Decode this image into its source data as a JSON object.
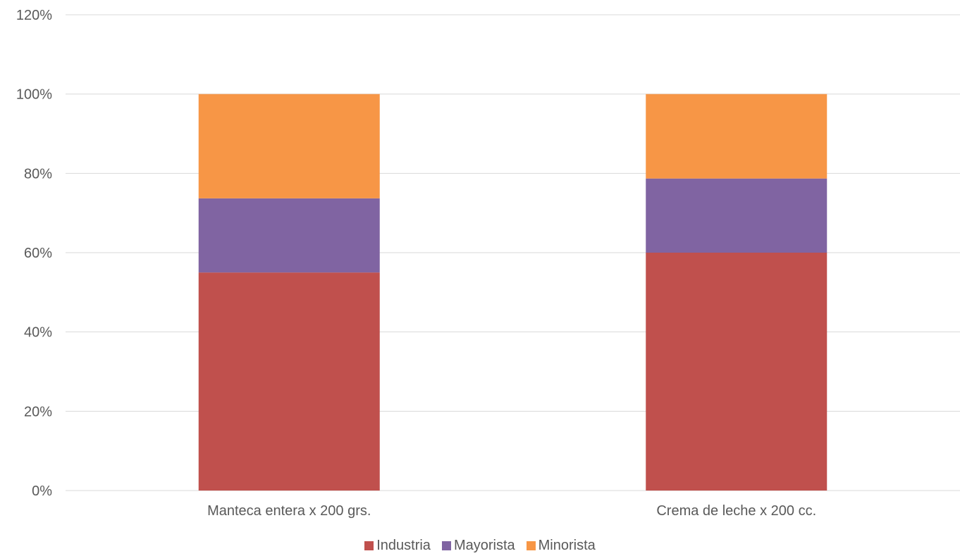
{
  "chart_data": {
    "type": "bar",
    "stacked": true,
    "categories": [
      "Manteca entera x 200 grs.",
      "Crema de leche x 200 cc."
    ],
    "series": [
      {
        "name": "Industria",
        "values": [
          55,
          60
        ],
        "color": "#C0504D"
      },
      {
        "name": "Mayorista",
        "values": [
          18.7,
          18.7
        ],
        "color": "#8064A2"
      },
      {
        "name": "Minorista",
        "values": [
          26.3,
          21.3
        ],
        "color": "#F79646"
      }
    ],
    "y_ticks": [
      "0%",
      "20%",
      "40%",
      "60%",
      "80%",
      "100%",
      "120%"
    ],
    "ylim": [
      0,
      120
    ],
    "grid": true,
    "legend_position": "bottom"
  }
}
